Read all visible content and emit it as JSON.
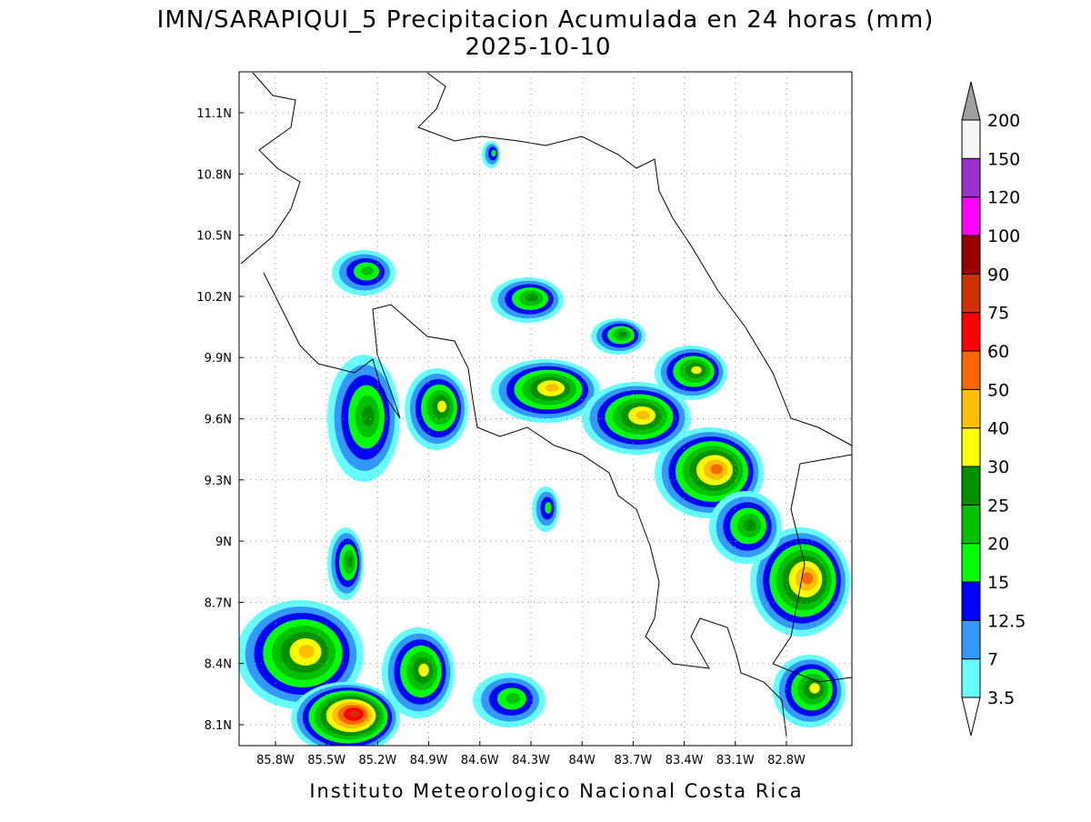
{
  "header": {
    "title": "IMN/SARAPIQUI_5 Precipitacion Acumulada en 24 horas (mm)",
    "date": "2025-10-10"
  },
  "map": {
    "lat_labels": [
      "11.1N",
      "10.8N",
      "10.5N",
      "10.2N",
      "9.9N",
      "9.6N",
      "9.3N",
      "9N",
      "8.7N",
      "8.4N",
      "8.1N"
    ],
    "lon_labels": [
      "85.8W",
      "85.5W",
      "85.2W",
      "84.9W",
      "84.6W",
      "84.3W",
      "84W",
      "83.7W",
      "83.4W",
      "83.1W",
      "82.8W"
    ],
    "grid": true
  },
  "colorbar": {
    "levels": [
      3.5,
      7,
      12.5,
      15,
      20,
      25,
      30,
      40,
      50,
      60,
      75,
      90,
      100,
      120,
      150,
      200
    ],
    "colors": [
      "#66ffff",
      "#3399ff",
      "#0000ff",
      "#00ff00",
      "#00c000",
      "#009000",
      "#ffff00",
      "#ffc000",
      "#ff6600",
      "#ff0000",
      "#cc3300",
      "#990000",
      "#ff00ff",
      "#9933cc",
      "#f5f5f5"
    ],
    "over_color": "#a0a0a0",
    "under_color": "#ffffff"
  },
  "footer": {
    "credit": "Instituto Meteorologico Nacional Costa Rica"
  }
}
